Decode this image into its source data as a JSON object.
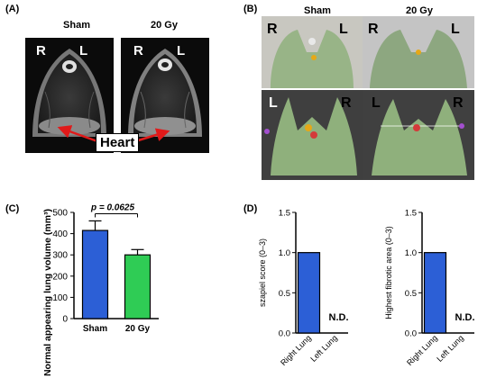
{
  "panel_a": {
    "label": "(A)",
    "images": [
      {
        "title": "Sham",
        "left": "R",
        "right": "L"
      },
      {
        "title": "20 Gy",
        "left": "R",
        "right": "L"
      }
    ],
    "heart_label": "Heart"
  },
  "panel_b": {
    "label": "(B)",
    "titles": [
      "Sham",
      "20 Gy"
    ],
    "top_left": {
      "left": "R",
      "right": "L"
    },
    "top_right": {
      "left": "R",
      "right": "L"
    },
    "bottom_left": {
      "left": "L",
      "right": "R"
    },
    "bottom_right": {
      "left": "L",
      "right": "R"
    }
  },
  "panel_c": {
    "label": "(C)",
    "chart_data": {
      "type": "bar",
      "categories": [
        "Sham",
        "20 Gy"
      ],
      "values": [
        415,
        300
      ],
      "errors": [
        45,
        25
      ],
      "colors": [
        "#2c5fd6",
        "#2fcc55"
      ],
      "ylabel": "Normal appearing lung volume (mm³)",
      "ylim": [
        0,
        500
      ],
      "yticks": [
        "0",
        "100",
        "200",
        "300",
        "400",
        "500"
      ],
      "yticks_values": [
        0,
        100,
        200,
        300,
        400,
        500
      ],
      "annotation": "p = 0.0625"
    }
  },
  "panel_d": {
    "label": "(D)",
    "chart_data": [
      {
        "type": "bar",
        "categories": [
          "Right Lung",
          "Left Lung"
        ],
        "values": [
          1.0,
          0
        ],
        "color": "#2c5fd6",
        "ylabel": "szapiel score (0–3)",
        "ylim": [
          0,
          1.5
        ],
        "yticks": [
          "0.0",
          "0.5",
          "1.0",
          "1.5"
        ],
        "yticks_values": [
          0,
          0.5,
          1.0,
          1.5
        ],
        "nd_label": "N.D."
      },
      {
        "type": "bar",
        "categories": [
          "Right Lung",
          "Left Lung"
        ],
        "values": [
          1.0,
          0
        ],
        "color": "#2c5fd6",
        "ylabel": "Highest fibrotic area (0–3)",
        "ylim": [
          0,
          1.5
        ],
        "yticks": [
          "0.0",
          "0.5",
          "1.0",
          "1.5"
        ],
        "yticks_values": [
          0,
          0.5,
          1.0,
          1.5
        ],
        "nd_label": "N.D."
      }
    ]
  }
}
